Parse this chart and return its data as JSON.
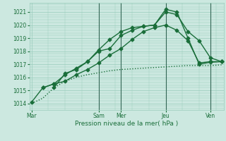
{
  "background_color": "#cce8e0",
  "grid_color": "#99ccbb",
  "line_color": "#1a6e3a",
  "ylim": [
    1013.5,
    1021.7
  ],
  "yticks": [
    1014,
    1015,
    1016,
    1017,
    1018,
    1019,
    1020,
    1021
  ],
  "xlabel": "Pression niveau de la mer( hPa )",
  "day_labels": [
    "Mar",
    "Sam",
    "Mer",
    "Jeu",
    "Ven"
  ],
  "day_positions": [
    0,
    3,
    4,
    6,
    8
  ],
  "xlim": [
    -0.1,
    8.6
  ],
  "series": [
    {
      "x": [
        0,
        0.5,
        1.0,
        1.5,
        2.0,
        2.5,
        3.0,
        3.5,
        4.0,
        4.5,
        5.0,
        5.5,
        6.0,
        6.5,
        7.0,
        7.5,
        8.0,
        8.5
      ],
      "y": [
        1014.0,
        1014.4,
        1015.2,
        1015.7,
        1016.0,
        1016.2,
        1016.35,
        1016.5,
        1016.6,
        1016.65,
        1016.7,
        1016.75,
        1016.8,
        1016.85,
        1016.9,
        1016.9,
        1016.9,
        1016.95
      ],
      "marker": null,
      "linestyle": ":",
      "linewidth": 1.0
    },
    {
      "x": [
        0,
        0.5,
        1.0,
        1.5,
        2.0,
        2.5,
        3.0,
        3.5,
        4.0,
        4.5,
        5.0,
        5.5,
        6.0,
        6.5,
        7.0,
        7.5,
        8.0,
        8.5
      ],
      "y": [
        1014.1,
        1015.2,
        1015.5,
        1015.7,
        1016.2,
        1016.6,
        1017.1,
        1017.7,
        1018.2,
        1018.9,
        1019.5,
        1019.8,
        1020.0,
        1019.6,
        1018.8,
        1017.1,
        1017.2,
        1017.2
      ],
      "marker": "D",
      "linestyle": "-",
      "linewidth": 1.0
    },
    {
      "x": [
        0.5,
        1.0,
        1.5,
        2.0,
        2.5,
        3.0,
        3.5,
        4.0,
        4.5,
        5.0,
        5.5,
        6.0,
        6.5,
        7.0,
        7.5,
        8.0,
        8.5
      ],
      "y": [
        1015.2,
        1015.5,
        1016.2,
        1016.7,
        1017.2,
        1018.1,
        1018.9,
        1019.5,
        1019.8,
        1019.9,
        1020.0,
        1021.0,
        1020.8,
        1019.5,
        1018.8,
        1017.5,
        1017.2
      ],
      "marker": "D",
      "linestyle": "-",
      "linewidth": 1.0
    },
    {
      "x": [
        1.0,
        1.5,
        2.0,
        2.5,
        3.0,
        3.5,
        4.0,
        4.5,
        5.0,
        5.5,
        6.0,
        6.5,
        7.0,
        7.5,
        8.0,
        8.5
      ],
      "y": [
        1015.2,
        1016.3,
        1016.6,
        1017.2,
        1018.0,
        1018.2,
        1019.2,
        1019.6,
        1019.9,
        1020.0,
        1021.2,
        1021.0,
        1019.0,
        1017.0,
        1017.15,
        1017.2
      ],
      "marker": "D",
      "linestyle": "-",
      "linewidth": 1.0
    }
  ],
  "vlines": [
    3,
    4,
    6,
    8
  ],
  "marker_size": 2.5,
  "tick_fontsize": 5.5,
  "xlabel_fontsize": 6.5
}
